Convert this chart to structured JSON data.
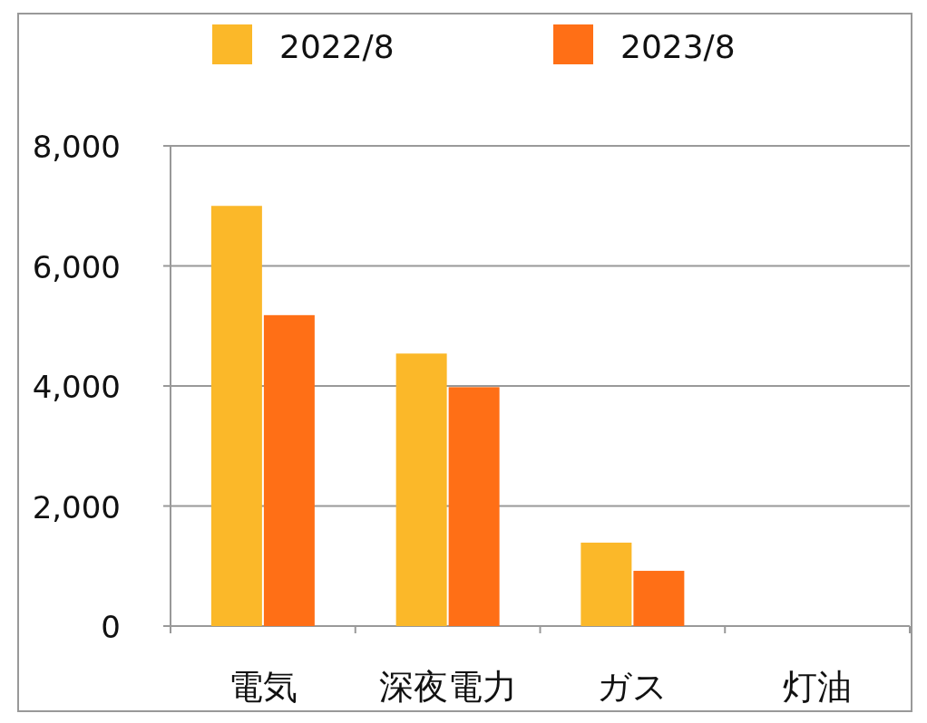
{
  "chart_data": {
    "type": "bar",
    "categories": [
      "電気",
      "深夜電力",
      "ガス",
      "灯油"
    ],
    "series": [
      {
        "name": "2022/8",
        "color": "#fbb829",
        "values": [
          7000,
          4540,
          1390,
          0
        ]
      },
      {
        "name": "2023/8",
        "color": "#ff6f16",
        "values": [
          5180,
          3980,
          920,
          0
        ]
      }
    ],
    "ylim": [
      0,
      8000
    ],
    "yticks": [
      {
        "value": 0,
        "label": "0"
      },
      {
        "value": 2000,
        "label": "2,000"
      },
      {
        "value": 4000,
        "label": "4,000"
      },
      {
        "value": 6000,
        "label": "6,000"
      },
      {
        "value": 8000,
        "label": "8,000"
      }
    ],
    "grid": "y",
    "legend": "top"
  }
}
